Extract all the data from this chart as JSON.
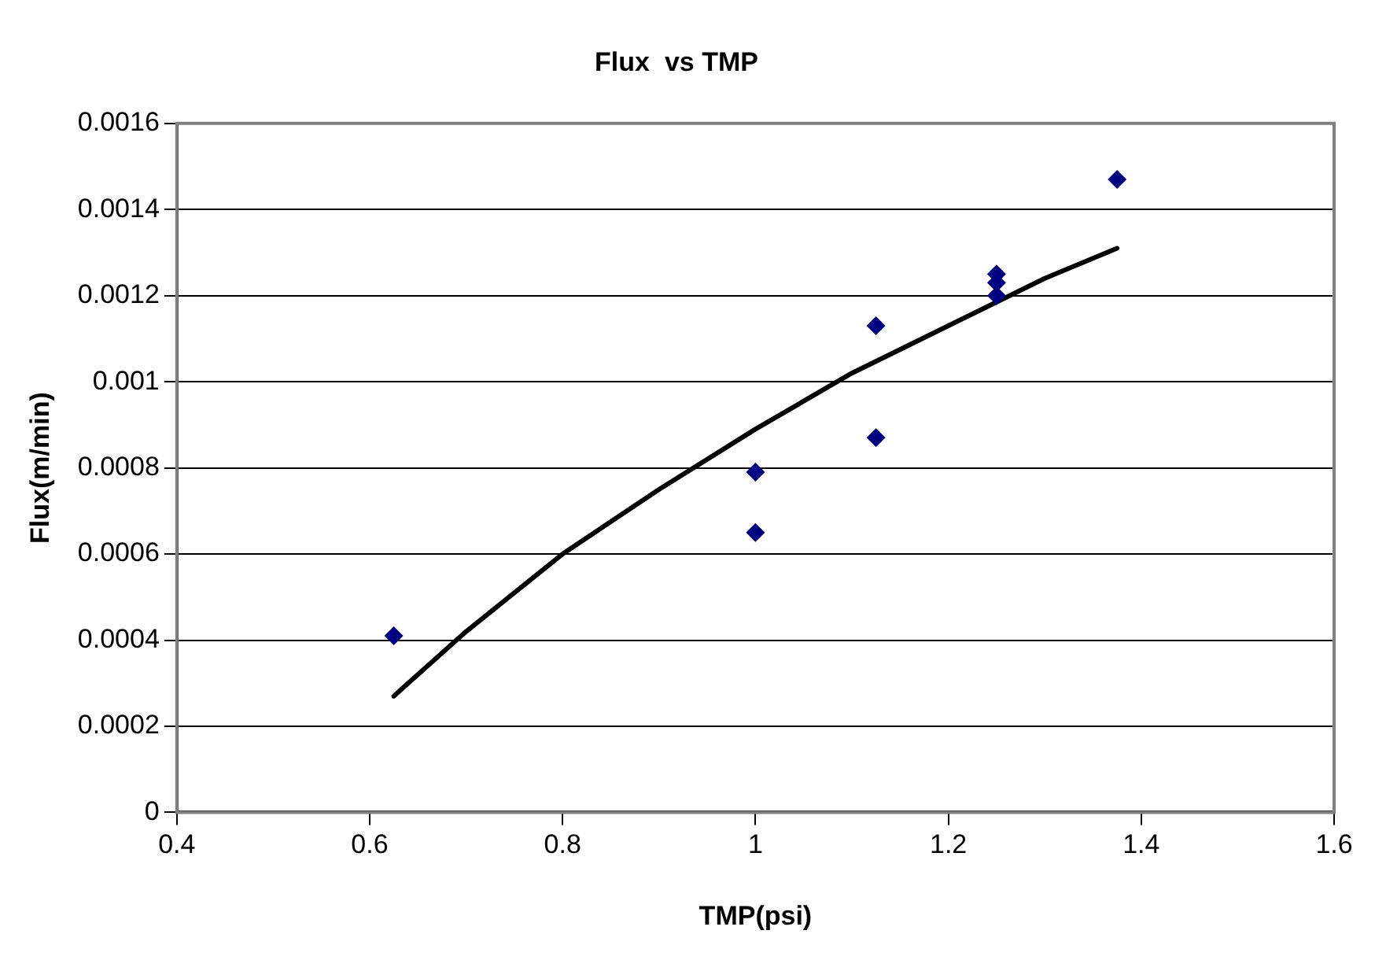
{
  "chart_data": {
    "type": "scatter",
    "title": "Flux  vs TMP",
    "xlabel": "TMP(psi)",
    "ylabel": "Flux(m/min)",
    "xlim": [
      0.4,
      1.6
    ],
    "xticks": [
      0.4,
      0.6,
      0.8,
      1,
      1.2,
      1.4,
      1.6
    ],
    "ylim": [
      0,
      0.0016
    ],
    "yticks": [
      0,
      0.0002,
      0.0004,
      0.0006,
      0.0008,
      0.001,
      0.0012,
      0.0014,
      0.0016
    ],
    "grid": "y",
    "legend": false,
    "series": [
      {
        "type": "scatter",
        "color": "#000080",
        "marker": "diamond",
        "x": [
          0.625,
          1,
          1,
          1.125,
          1.125,
          1.25,
          1.25,
          1.25,
          1.375
        ],
        "values": [
          0.00041,
          0.00079,
          0.00065,
          0.00113,
          0.00087,
          0.00125,
          0.00123,
          0.0012,
          0.00147
        ]
      },
      {
        "type": "line",
        "color": "#000000",
        "marker": "none",
        "line_style": "solid",
        "x": [
          0.625,
          0.7,
          0.8,
          0.9,
          1,
          1.1,
          1.2,
          1.3,
          1.375
        ],
        "values": [
          0.00027,
          0.00042,
          0.0006,
          0.00075,
          0.00089,
          0.00102,
          0.00113,
          0.00124,
          0.00131
        ]
      }
    ]
  }
}
